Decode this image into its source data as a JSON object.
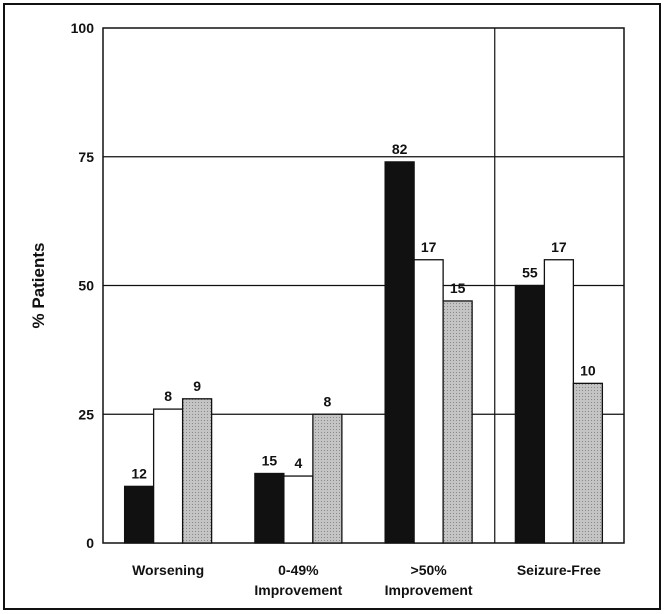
{
  "chart_data": {
    "type": "bar",
    "title": "",
    "xlabel": "",
    "ylabel": "% Patients",
    "ylim": [
      0,
      100
    ],
    "yticks": [
      0,
      25,
      50,
      75,
      100
    ],
    "grid": true,
    "legend": "none",
    "categories": [
      [
        "Worsening"
      ],
      [
        "0-49%",
        "Improvement"
      ],
      [
        ">50%",
        "Improvement"
      ],
      [
        "Seizure-Free"
      ]
    ],
    "series": [
      {
        "color": "#111111",
        "values": [
          11,
          13.5,
          74,
          50
        ],
        "labels": [
          "12",
          "15",
          "82",
          "55"
        ]
      },
      {
        "color": "#ffffff",
        "values": [
          26,
          13,
          55,
          55
        ],
        "labels": [
          "8",
          "4",
          "17",
          "17"
        ]
      },
      {
        "color": "#b8b8b8",
        "values": [
          28,
          25,
          47,
          31
        ],
        "labels": [
          "9",
          "8",
          "15",
          "10"
        ]
      }
    ]
  }
}
